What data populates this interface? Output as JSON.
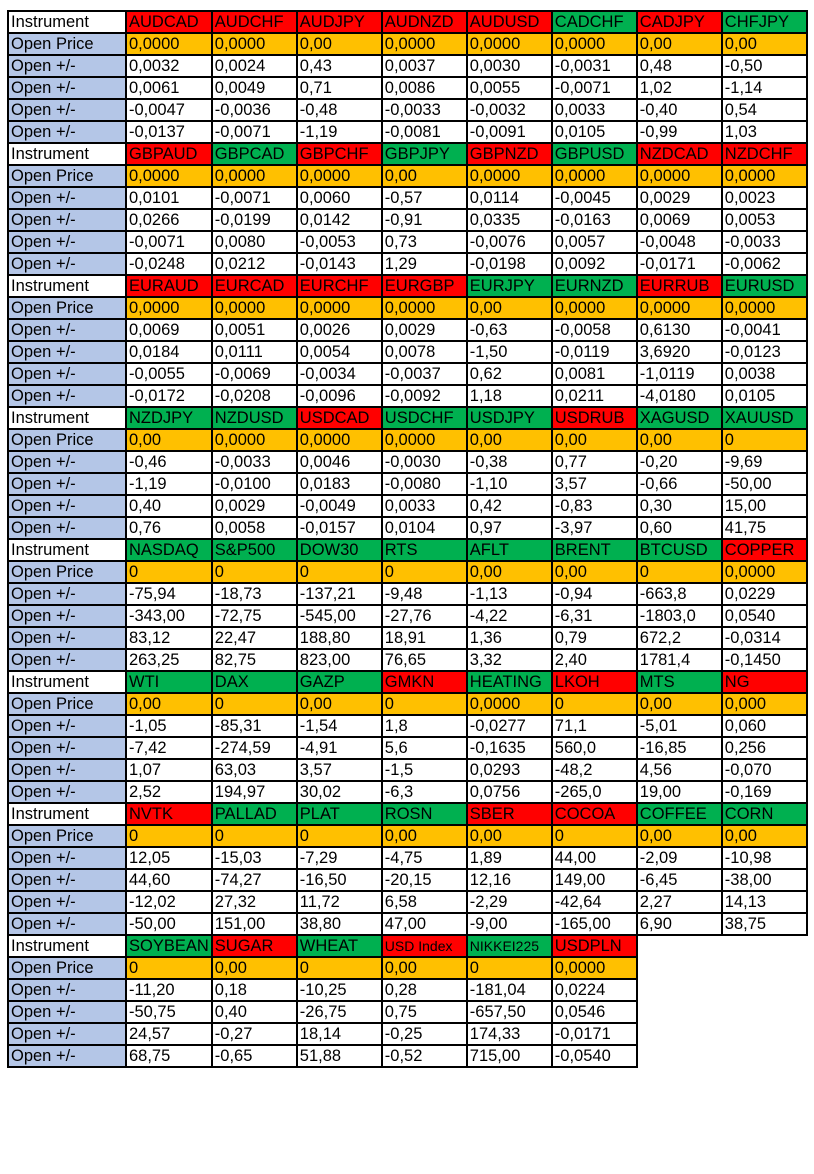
{
  "labels": {
    "instrument": "Instrument",
    "open_price": "Open Price",
    "open_pm": "Open +/-"
  },
  "colors": {
    "up": "#00b050",
    "down": "#ff0000",
    "open": "#ffc000",
    "label": "#b4c6e7"
  },
  "blocks": [
    {
      "instruments": [
        {
          "name": "AUDCAD",
          "trend": "down",
          "open": "0,0000",
          "values": [
            "0,0032",
            "0,0061",
            "-0,0047",
            "-0,0137"
          ]
        },
        {
          "name": "AUDCHF",
          "trend": "down",
          "open": "0,0000",
          "values": [
            "0,0024",
            "0,0049",
            "-0,0036",
            "-0,0071"
          ]
        },
        {
          "name": "AUDJPY",
          "trend": "down",
          "open": "0,00",
          "values": [
            "0,43",
            "0,71",
            "-0,48",
            "-1,19"
          ]
        },
        {
          "name": "AUDNZD",
          "trend": "down",
          "open": "0,0000",
          "values": [
            "0,0037",
            "0,0086",
            "-0,0033",
            "-0,0081"
          ]
        },
        {
          "name": "AUDUSD",
          "trend": "down",
          "open": "0,0000",
          "values": [
            "0,0030",
            "0,0055",
            "-0,0032",
            "-0,0091"
          ]
        },
        {
          "name": "CADCHF",
          "trend": "up",
          "open": "0,0000",
          "values": [
            "-0,0031",
            "-0,0071",
            "0,0033",
            "0,0105"
          ]
        },
        {
          "name": "CADJPY",
          "trend": "down",
          "open": "0,00",
          "values": [
            "0,48",
            "1,02",
            "-0,40",
            "-0,99"
          ]
        },
        {
          "name": "CHFJPY",
          "trend": "up",
          "open": "0,00",
          "values": [
            "-0,50",
            "-1,14",
            "0,54",
            "1,03"
          ]
        }
      ]
    },
    {
      "instruments": [
        {
          "name": "GBPAUD",
          "trend": "down",
          "open": "0,0000",
          "values": [
            "0,0101",
            "0,0266",
            "-0,0071",
            "-0,0248"
          ]
        },
        {
          "name": "GBPCAD",
          "trend": "up",
          "open": "0,0000",
          "values": [
            "-0,0071",
            "-0,0199",
            "0,0080",
            "0,0212"
          ]
        },
        {
          "name": "GBPCHF",
          "trend": "down",
          "open": "0,0000",
          "values": [
            "0,0060",
            "0,0142",
            "-0,0053",
            "-0,0143"
          ]
        },
        {
          "name": "GBPJPY",
          "trend": "up",
          "open": "0,00",
          "values": [
            "-0,57",
            "-0,91",
            "0,73",
            "1,29"
          ]
        },
        {
          "name": "GBPNZD",
          "trend": "down",
          "open": "0,0000",
          "values": [
            "0,0114",
            "0,0335",
            "-0,0076",
            "-0,0198"
          ]
        },
        {
          "name": "GBPUSD",
          "trend": "up",
          "open": "0,0000",
          "values": [
            "-0,0045",
            "-0,0163",
            "0,0057",
            "0,0092"
          ]
        },
        {
          "name": "NZDCAD",
          "trend": "down",
          "open": "0,0000",
          "values": [
            "0,0029",
            "0,0069",
            "-0,0048",
            "-0,0171"
          ]
        },
        {
          "name": "NZDCHF",
          "trend": "down",
          "open": "0,0000",
          "values": [
            "0,0023",
            "0,0053",
            "-0,0033",
            "-0,0062"
          ]
        }
      ]
    },
    {
      "instruments": [
        {
          "name": "EURAUD",
          "trend": "down",
          "open": "0,0000",
          "values": [
            "0,0069",
            "0,0184",
            "-0,0055",
            "-0,0172"
          ]
        },
        {
          "name": "EURCAD",
          "trend": "down",
          "open": "0,0000",
          "values": [
            "0,0051",
            "0,0111",
            "-0,0069",
            "-0,0208"
          ]
        },
        {
          "name": "EURCHF",
          "trend": "down",
          "open": "0,0000",
          "values": [
            "0,0026",
            "0,0054",
            "-0,0034",
            "-0,0096"
          ]
        },
        {
          "name": "EURGBP",
          "trend": "down",
          "open": "0,0000",
          "values": [
            "0,0029",
            "0,0078",
            "-0,0037",
            "-0,0092"
          ]
        },
        {
          "name": "EURJPY",
          "trend": "up",
          "open": "0,00",
          "values": [
            "-0,63",
            "-1,50",
            "0,62",
            "1,18"
          ]
        },
        {
          "name": "EURNZD",
          "trend": "up",
          "open": "0,0000",
          "values": [
            "-0,0058",
            "-0,0119",
            "0,0081",
            "0,0211"
          ]
        },
        {
          "name": "EURRUB",
          "trend": "down",
          "open": "0,0000",
          "values": [
            "0,6130",
            "3,6920",
            "-1,0119",
            "-4,0180"
          ]
        },
        {
          "name": "EURUSD",
          "trend": "up",
          "open": "0,0000",
          "values": [
            "-0,0041",
            "-0,0123",
            "0,0038",
            "0,0105"
          ]
        }
      ]
    },
    {
      "instruments": [
        {
          "name": "NZDJPY",
          "trend": "up",
          "open": "0,00",
          "values": [
            "-0,46",
            "-1,19",
            "0,40",
            "0,76"
          ]
        },
        {
          "name": "NZDUSD",
          "trend": "up",
          "open": "0,0000",
          "values": [
            "-0,0033",
            "-0,0100",
            "0,0029",
            "0,0058"
          ]
        },
        {
          "name": "USDCAD",
          "trend": "down",
          "open": "0,0000",
          "values": [
            "0,0046",
            "0,0183",
            "-0,0049",
            "-0,0157"
          ]
        },
        {
          "name": "USDCHF",
          "trend": "up",
          "open": "0,0000",
          "values": [
            "-0,0030",
            "-0,0080",
            "0,0033",
            "0,0104"
          ]
        },
        {
          "name": "USDJPY",
          "trend": "up",
          "open": "0,00",
          "values": [
            "-0,38",
            "-1,10",
            "0,42",
            "0,97"
          ]
        },
        {
          "name": "USDRUB",
          "trend": "down",
          "open": "0,00",
          "values": [
            "0,77",
            "3,57",
            "-0,83",
            "-3,97"
          ]
        },
        {
          "name": "XAGUSD",
          "trend": "up",
          "open": "0,00",
          "values": [
            "-0,20",
            "-0,66",
            "0,30",
            "0,60"
          ]
        },
        {
          "name": "XAUUSD",
          "trend": "up",
          "open": "0",
          "values": [
            "-9,69",
            "-50,00",
            "15,00",
            "41,75"
          ]
        }
      ]
    },
    {
      "instruments": [
        {
          "name": "NASDAQ",
          "trend": "up",
          "open": "0",
          "values": [
            "-75,94",
            "-343,00",
            "83,12",
            "263,25"
          ]
        },
        {
          "name": "S&P500",
          "trend": "up",
          "open": "0",
          "values": [
            "-18,73",
            "-72,75",
            "22,47",
            "82,75"
          ]
        },
        {
          "name": "DOW30",
          "trend": "up",
          "open": "0",
          "values": [
            "-137,21",
            "-545,00",
            "188,80",
            "823,00"
          ]
        },
        {
          "name": "RTS",
          "trend": "up",
          "open": "0",
          "values": [
            "-9,48",
            "-27,76",
            "18,91",
            "76,65"
          ]
        },
        {
          "name": "AFLT",
          "trend": "up",
          "open": "0,00",
          "values": [
            "-1,13",
            "-4,22",
            "1,36",
            "3,32"
          ]
        },
        {
          "name": "BRENT",
          "trend": "up",
          "open": "0,00",
          "values": [
            "-0,94",
            "-6,31",
            "0,79",
            "2,40"
          ]
        },
        {
          "name": "BTCUSD",
          "trend": "up",
          "open": "0",
          "values": [
            "-663,8",
            "-1803,0",
            "672,2",
            "1781,4"
          ]
        },
        {
          "name": "COPPER",
          "trend": "down",
          "open": "0,0000",
          "values": [
            "0,0229",
            "0,0540",
            "-0,0314",
            "-0,1450"
          ]
        }
      ]
    },
    {
      "instruments": [
        {
          "name": "WTI",
          "trend": "up",
          "open": "0,00",
          "values": [
            "-1,05",
            "-7,42",
            "1,07",
            "2,52"
          ]
        },
        {
          "name": "DAX",
          "trend": "up",
          "open": "0",
          "values": [
            "-85,31",
            "-274,59",
            "63,03",
            "194,97"
          ]
        },
        {
          "name": "GAZP",
          "trend": "up",
          "open": "0,00",
          "values": [
            "-1,54",
            "-4,91",
            "3,57",
            "30,02"
          ]
        },
        {
          "name": "GMKN",
          "trend": "down",
          "open": "0",
          "values": [
            "1,8",
            "5,6",
            "-1,5",
            "-6,3"
          ]
        },
        {
          "name": "HEATING",
          "trend": "up",
          "open": "0,0000",
          "values": [
            "-0,0277",
            "-0,1635",
            "0,0293",
            "0,0756"
          ]
        },
        {
          "name": "LKOH",
          "trend": "down",
          "open": "0",
          "values": [
            "71,1",
            "560,0",
            "-48,2",
            "-265,0"
          ]
        },
        {
          "name": "MTS",
          "trend": "up",
          "open": "0,00",
          "values": [
            "-5,01",
            "-16,85",
            "4,56",
            "19,00"
          ]
        },
        {
          "name": "NG",
          "trend": "down",
          "open": "0,000",
          "values": [
            "0,060",
            "0,256",
            "-0,070",
            "-0,169"
          ]
        }
      ]
    },
    {
      "instruments": [
        {
          "name": "NVTK",
          "trend": "down",
          "open": "0",
          "values": [
            "12,05",
            "44,60",
            "-12,02",
            "-50,00"
          ]
        },
        {
          "name": "PALLAD",
          "trend": "up",
          "open": "0",
          "values": [
            "-15,03",
            "-74,27",
            "27,32",
            "151,00"
          ]
        },
        {
          "name": "PLAT",
          "trend": "up",
          "open": "0",
          "values": [
            "-7,29",
            "-16,50",
            "11,72",
            "38,80"
          ]
        },
        {
          "name": "ROSN",
          "trend": "up",
          "open": "0,00",
          "values": [
            "-4,75",
            "-20,15",
            "6,58",
            "47,00"
          ]
        },
        {
          "name": "SBER",
          "trend": "down",
          "open": "0,00",
          "values": [
            "1,89",
            "12,16",
            "-2,29",
            "-9,00"
          ]
        },
        {
          "name": "COCOA",
          "trend": "down",
          "open": "0",
          "values": [
            "44,00",
            "149,00",
            "-42,64",
            "-165,00"
          ]
        },
        {
          "name": "COFFEE",
          "trend": "up",
          "open": "0,00",
          "values": [
            "-2,09",
            "-6,45",
            "2,27",
            "6,90"
          ]
        },
        {
          "name": "CORN",
          "trend": "up",
          "open": "0,00",
          "values": [
            "-10,98",
            "-38,00",
            "14,13",
            "38,75"
          ]
        }
      ]
    },
    {
      "instruments": [
        {
          "name": "SOYBEAN",
          "trend": "up",
          "open": "0",
          "values": [
            "-11,20",
            "-50,75",
            "24,57",
            "68,75"
          ]
        },
        {
          "name": "SUGAR",
          "trend": "down",
          "open": "0,00",
          "values": [
            "0,18",
            "0,40",
            "-0,27",
            "-0,65"
          ]
        },
        {
          "name": "WHEAT",
          "trend": "up",
          "open": "0",
          "values": [
            "-10,25",
            "-26,75",
            "18,14",
            "51,88"
          ]
        },
        {
          "name": "USD Index",
          "trend": "down",
          "open": "0,00",
          "values": [
            "0,28",
            "0,75",
            "-0,25",
            "-0,52"
          ]
        },
        {
          "name": "NIKKEI225",
          "trend": "up",
          "open": "0",
          "values": [
            "-181,04",
            "-657,50",
            "174,33",
            "715,00"
          ]
        },
        {
          "name": "USDPLN",
          "trend": "down",
          "open": "0,0000",
          "values": [
            "0,0224",
            "0,0546",
            "-0,0171",
            "-0,0540"
          ]
        }
      ]
    }
  ]
}
